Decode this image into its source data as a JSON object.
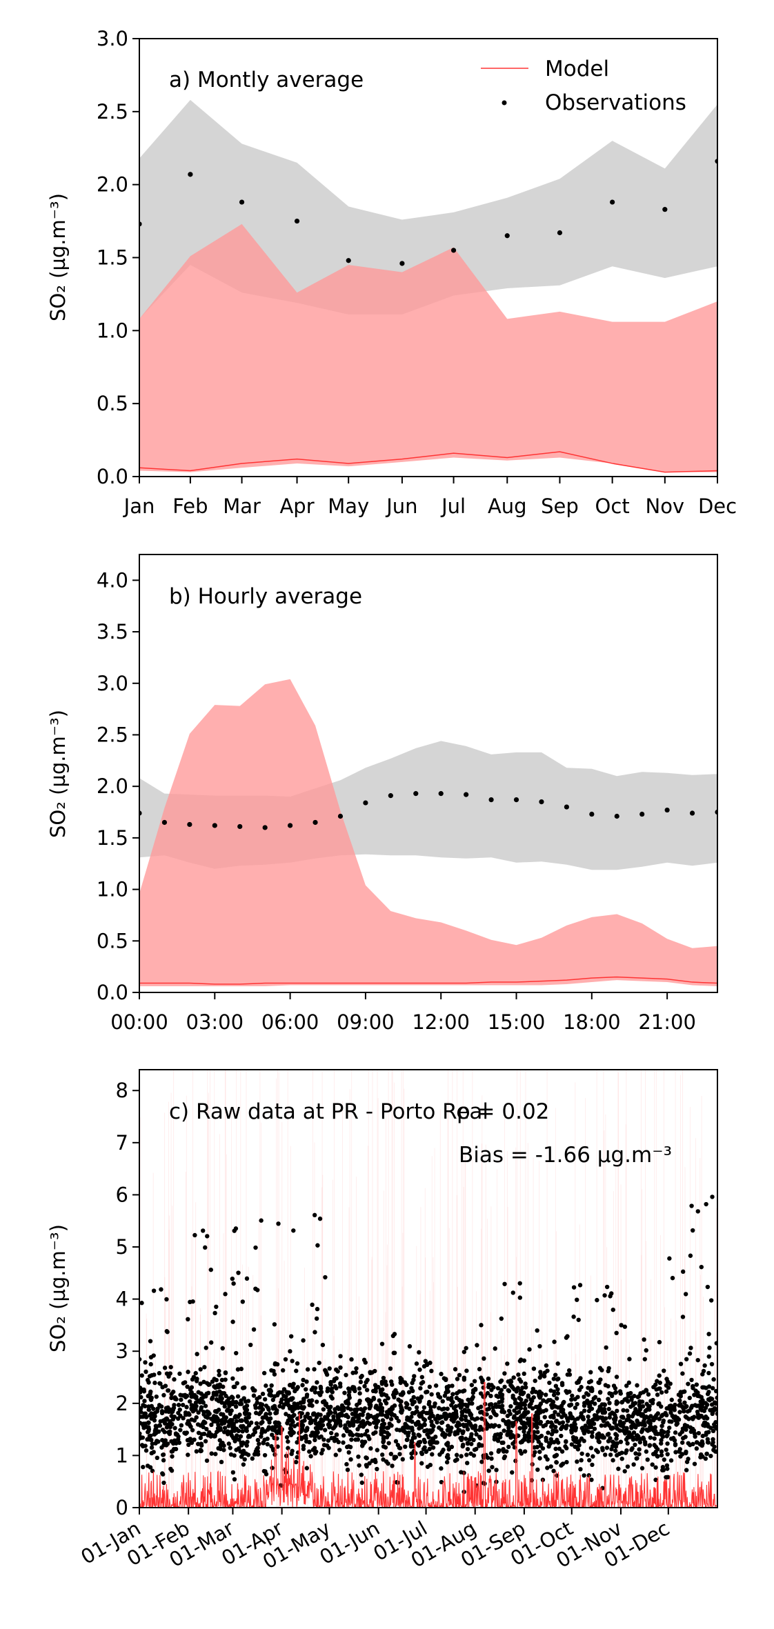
{
  "chart_data": [
    {
      "type": "area",
      "panel_label": "a) Montly average",
      "ylabel": "SO₂ (µg.m⁻³)",
      "ylim": [
        0,
        3.0
      ],
      "yticks": [
        "0.0",
        "0.5",
        "1.0",
        "1.5",
        "2.0",
        "2.5",
        "3.0"
      ],
      "categories": [
        "Jan",
        "Feb",
        "Mar",
        "Apr",
        "May",
        "Jun",
        "Jul",
        "Aug",
        "Sep",
        "Oct",
        "Nov",
        "Dec"
      ],
      "x": [
        0,
        0.97,
        1.95,
        3.0,
        3.98,
        5.0,
        5.98,
        7.0,
        8.0,
        9.0,
        10.0,
        11.0
      ],
      "legend": {
        "position": "top-right",
        "entries": [
          "Model",
          "Observations"
        ]
      },
      "series": [
        {
          "name": "Observations",
          "kind": "points",
          "values": [
            1.73,
            2.07,
            1.88,
            1.75,
            1.48,
            1.46,
            1.55,
            1.65,
            1.67,
            1.88,
            1.83,
            2.16
          ]
        },
        {
          "kind": "band",
          "color": "#d3d3d3",
          "lower": [
            1.08,
            1.45,
            1.26,
            1.19,
            1.11,
            1.11,
            1.24,
            1.29,
            1.31,
            1.44,
            1.36,
            1.44
          ],
          "upper": [
            2.18,
            2.58,
            2.28,
            2.15,
            1.85,
            1.76,
            1.81,
            1.91,
            2.04,
            2.3,
            2.11,
            2.55
          ]
        },
        {
          "kind": "band",
          "color": "#ff9999",
          "lower": [
            0.04,
            0.03,
            0.06,
            0.09,
            0.07,
            0.1,
            0.13,
            0.11,
            0.13,
            0.09,
            0.03,
            0.03
          ],
          "upper": [
            1.08,
            1.51,
            1.73,
            1.26,
            1.45,
            1.4,
            1.57,
            1.08,
            1.13,
            1.06,
            1.06,
            1.2
          ]
        },
        {
          "name": "Model",
          "kind": "line",
          "color": "#ff3333",
          "values": [
            0.06,
            0.04,
            0.09,
            0.12,
            0.09,
            0.12,
            0.16,
            0.13,
            0.17,
            0.09,
            0.03,
            0.04
          ]
        }
      ]
    },
    {
      "type": "area",
      "panel_label": "b) Hourly average",
      "ylabel": "SO₂ (µg.m⁻³)",
      "ylim": [
        0,
        4.25
      ],
      "yticks": [
        "0.0",
        "0.5",
        "1.0",
        "1.5",
        "2.0",
        "2.5",
        "3.0",
        "3.5",
        "4.0"
      ],
      "xticks": [
        "00:00",
        "03:00",
        "06:00",
        "09:00",
        "12:00",
        "15:00",
        "18:00",
        "21:00"
      ],
      "x": [
        0,
        1,
        2,
        3,
        4,
        5,
        6,
        7,
        8,
        9,
        10,
        11,
        12,
        13,
        14,
        15,
        16,
        17,
        18,
        19,
        20,
        21,
        22,
        23
      ],
      "series": [
        {
          "name": "Observations",
          "kind": "points",
          "values": [
            1.74,
            1.65,
            1.63,
            1.62,
            1.61,
            1.6,
            1.62,
            1.65,
            1.71,
            1.84,
            1.91,
            1.93,
            1.93,
            1.92,
            1.87,
            1.87,
            1.85,
            1.8,
            1.73,
            1.71,
            1.73,
            1.77,
            1.74,
            1.75
          ]
        },
        {
          "kind": "band",
          "color": "#d3d3d3",
          "lower": [
            1.31,
            1.33,
            1.26,
            1.2,
            1.23,
            1.24,
            1.26,
            1.3,
            1.33,
            1.34,
            1.33,
            1.33,
            1.31,
            1.3,
            1.31,
            1.26,
            1.27,
            1.24,
            1.19,
            1.19,
            1.22,
            1.26,
            1.23,
            1.26
          ],
          "upper": [
            2.08,
            1.93,
            1.92,
            1.91,
            1.91,
            1.91,
            1.9,
            1.98,
            2.06,
            2.18,
            2.27,
            2.37,
            2.44,
            2.39,
            2.31,
            2.33,
            2.33,
            2.18,
            2.17,
            2.1,
            2.14,
            2.13,
            2.11,
            2.12
          ]
        },
        {
          "kind": "band",
          "color": "#ff9999",
          "lower": [
            0.06,
            0.06,
            0.06,
            0.06,
            0.06,
            0.06,
            0.07,
            0.07,
            0.07,
            0.07,
            0.07,
            0.07,
            0.07,
            0.07,
            0.07,
            0.07,
            0.07,
            0.08,
            0.1,
            0.12,
            0.11,
            0.1,
            0.07,
            0.06
          ],
          "upper": [
            0.96,
            1.79,
            2.51,
            2.79,
            2.78,
            2.99,
            3.04,
            2.59,
            1.76,
            1.04,
            0.79,
            0.72,
            0.68,
            0.6,
            0.51,
            0.46,
            0.53,
            0.65,
            0.73,
            0.76,
            0.67,
            0.52,
            0.43,
            0.45
          ]
        },
        {
          "name": "Model",
          "kind": "line",
          "color": "#ff3333",
          "values": [
            0.09,
            0.09,
            0.09,
            0.08,
            0.08,
            0.09,
            0.09,
            0.09,
            0.09,
            0.09,
            0.09,
            0.09,
            0.09,
            0.09,
            0.1,
            0.1,
            0.11,
            0.12,
            0.14,
            0.15,
            0.14,
            0.13,
            0.1,
            0.09
          ]
        }
      ]
    },
    {
      "type": "scatter",
      "panel_label": "c) Raw data at PR - Porto Real",
      "annotations": [
        "ρ = 0.02",
        "Bias = -1.66 µg.m⁻³"
      ],
      "ylabel": "SO₂ (µg.m⁻³)",
      "ylim": [
        0,
        8.4
      ],
      "yticks": [
        "0",
        "1",
        "2",
        "3",
        "4",
        "5",
        "6",
        "7",
        "8"
      ],
      "xticks": [
        "01-Jan",
        "01-Feb",
        "01-Mar",
        "01-Apr",
        "01-May",
        "01-Jun",
        "01-Jul",
        "01-Aug",
        "01-Sep",
        "01-Oct",
        "01-Nov",
        "01-Dec"
      ],
      "xtick_day_of_year": [
        0,
        31,
        59,
        90,
        120,
        151,
        181,
        212,
        243,
        273,
        304,
        334
      ],
      "xlim_day_of_year": [
        0,
        365
      ],
      "observations": {
        "color": "#000000",
        "kind": "hourly points",
        "monthly_typical_range": [
          [
            0.3,
            4.2
          ],
          [
            0.5,
            5.4
          ],
          [
            0.3,
            5.7
          ],
          [
            0.4,
            5.8
          ],
          [
            0.4,
            3.0
          ],
          [
            0.3,
            3.5
          ],
          [
            0.3,
            3.2
          ],
          [
            0.4,
            4.5
          ],
          [
            0.3,
            3.5
          ],
          [
            0.3,
            4.4
          ],
          [
            0.3,
            3.5
          ],
          [
            0.4,
            6.0
          ]
        ]
      },
      "model": {
        "color": "#ff3333",
        "kind": "hourly line",
        "typical_range": [
          0,
          1.3
        ],
        "max_spikes": [
          {
            "day": 86,
            "value": 1.4
          },
          {
            "day": 90,
            "value": 1.55
          },
          {
            "day": 101,
            "value": 1.8
          },
          {
            "day": 174,
            "value": 1.25
          },
          {
            "day": 218,
            "value": 2.4
          },
          {
            "day": 238,
            "value": 1.65
          },
          {
            "day": 248,
            "value": 1.8
          }
        ]
      }
    }
  ]
}
